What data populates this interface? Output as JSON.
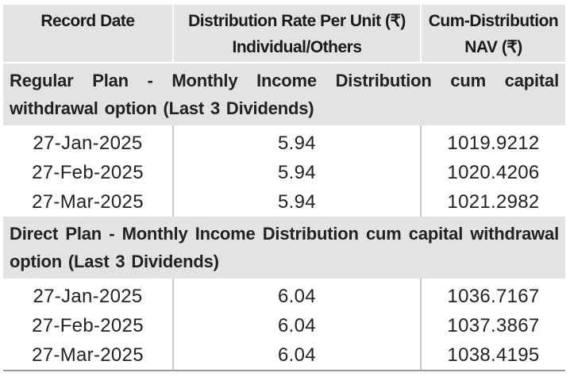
{
  "header": {
    "col1": "Record Date",
    "col2_line1": "Distribution Rate Per Unit (₹)",
    "col2_line2": "Individual/Others",
    "col3_line1": "Cum-Distribution",
    "col3_line2": "NAV (₹)"
  },
  "sections": [
    {
      "title": "Regular Plan - Monthly Income Distribution cum capital withdrawal option (Last 3 Dividends)",
      "rows": [
        {
          "date": "27-Jan-2025",
          "rate": "5.94",
          "nav": "1019.9212"
        },
        {
          "date": "27-Feb-2025",
          "rate": "5.94",
          "nav": "1020.4206"
        },
        {
          "date": "27-Mar-2025",
          "rate": "5.94",
          "nav": "1021.2982"
        }
      ]
    },
    {
      "title": "Direct Plan - Monthly Income Distribution cum capital withdrawal option (Last 3 Dividends)",
      "rows": [
        {
          "date": "27-Jan-2025",
          "rate": "6.04",
          "nav": "1036.7167"
        },
        {
          "date": "27-Feb-2025",
          "rate": "6.04",
          "nav": "1037.3867"
        },
        {
          "date": "27-Mar-2025",
          "rate": "6.04",
          "nav": "1038.4195"
        }
      ]
    }
  ]
}
